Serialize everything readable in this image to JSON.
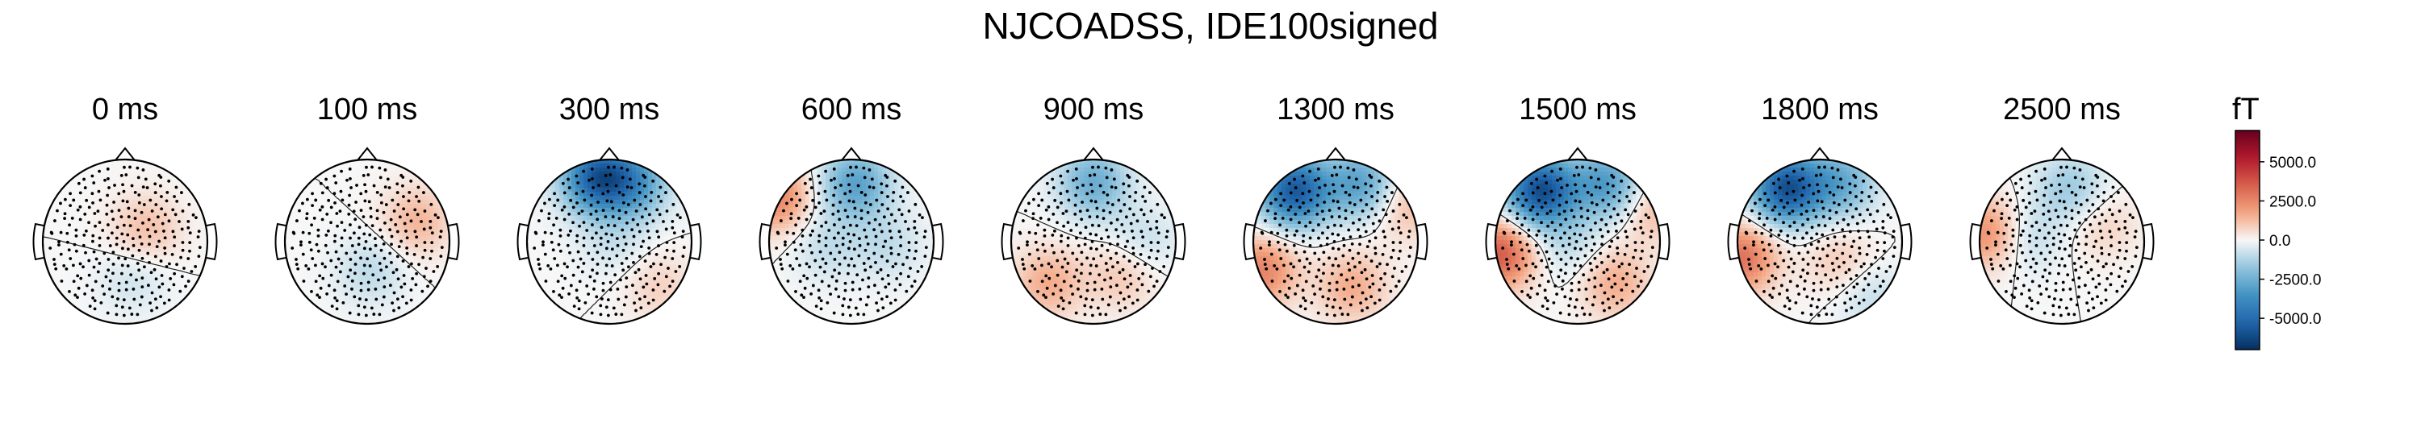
{
  "figure": {
    "title": "NJCOADSS, IDE100signed"
  },
  "chart_data": {
    "type": "heatmap",
    "title": "NJCOADSS, IDE100signed",
    "times": [
      "0 ms",
      "100 ms",
      "300 ms",
      "600 ms",
      "900 ms",
      "1300 ms",
      "1500 ms",
      "1800 ms",
      "2500 ms"
    ],
    "colorbar": {
      "unit": "fT",
      "ticks": [
        "5000.0",
        "2500.0",
        "0.0",
        "-2500.0",
        "-5000.0"
      ],
      "tick_values": [
        5000,
        2500,
        0,
        -2500,
        -5000
      ],
      "range": [
        -7000,
        7000
      ],
      "cmap": "RdBu_r",
      "colors": {
        "max": "#67001f",
        "pos": "#d6604d",
        "zero": "#f7f7f7",
        "neg": "#4393c3",
        "min": "#053061"
      }
    },
    "maps": [
      {
        "time": "0 ms",
        "blobs": [
          {
            "x": 0.25,
            "y": 0.15,
            "v": 1200
          },
          {
            "x": 0.1,
            "y": -0.45,
            "v": -700
          }
        ]
      },
      {
        "time": "100 ms",
        "blobs": [
          {
            "x": 0.6,
            "y": 0.25,
            "v": 1400
          },
          {
            "x": 0.05,
            "y": -0.35,
            "v": -1000
          }
        ]
      },
      {
        "time": "300 ms",
        "blobs": [
          {
            "x": -0.15,
            "y": 0.78,
            "v": -5200
          },
          {
            "x": 0.3,
            "y": 0.72,
            "v": -3000
          },
          {
            "x": 0.05,
            "y": 0.0,
            "v": -700
          },
          {
            "x": 0.6,
            "y": -0.55,
            "v": 800
          }
        ]
      },
      {
        "time": "600 ms",
        "blobs": [
          {
            "x": -0.92,
            "y": 0.55,
            "v": 2600
          },
          {
            "x": 0.05,
            "y": 0.7,
            "v": -3000
          },
          {
            "x": -0.3,
            "y": -0.05,
            "v": -900
          },
          {
            "x": 0.45,
            "y": -0.05,
            "v": -900
          }
        ]
      },
      {
        "time": "900 ms",
        "blobs": [
          {
            "x": 0.0,
            "y": 0.72,
            "v": -2600
          },
          {
            "x": -0.55,
            "y": -0.5,
            "v": 1600
          },
          {
            "x": 0.35,
            "y": -0.4,
            "v": 1100
          },
          {
            "x": 0.6,
            "y": 0.0,
            "v": -900
          }
        ]
      },
      {
        "time": "1300 ms",
        "blobs": [
          {
            "x": -0.5,
            "y": 0.62,
            "v": -5600
          },
          {
            "x": 0.3,
            "y": 0.7,
            "v": -3000
          },
          {
            "x": -0.9,
            "y": -0.35,
            "v": 2600
          },
          {
            "x": 0.2,
            "y": -0.55,
            "v": 1600
          },
          {
            "x": 0.85,
            "y": 0.45,
            "v": 1300
          }
        ]
      },
      {
        "time": "1500 ms",
        "blobs": [
          {
            "x": -0.45,
            "y": 0.62,
            "v": -6000
          },
          {
            "x": 0.35,
            "y": 0.7,
            "v": -3200
          },
          {
            "x": -0.95,
            "y": -0.15,
            "v": 3600
          },
          {
            "x": 0.45,
            "y": -0.5,
            "v": 1600
          },
          {
            "x": 0.9,
            "y": 0.4,
            "v": 1300
          },
          {
            "x": -0.1,
            "y": -0.05,
            "v": -900
          }
        ]
      },
      {
        "time": "1800 ms",
        "blobs": [
          {
            "x": -0.4,
            "y": 0.65,
            "v": -5800
          },
          {
            "x": 0.25,
            "y": 0.72,
            "v": -2600
          },
          {
            "x": -0.95,
            "y": -0.2,
            "v": 3000
          },
          {
            "x": 0.25,
            "y": -0.25,
            "v": 1000
          },
          {
            "x": 0.6,
            "y": -0.65,
            "v": -900
          }
        ]
      },
      {
        "time": "2500 ms",
        "blobs": [
          {
            "x": -0.9,
            "y": 0.1,
            "v": 2400
          },
          {
            "x": 0.1,
            "y": 0.65,
            "v": -1600
          },
          {
            "x": -0.45,
            "y": 0.05,
            "v": -1100
          },
          {
            "x": 0.5,
            "y": 0.2,
            "v": 800
          }
        ]
      }
    ]
  }
}
